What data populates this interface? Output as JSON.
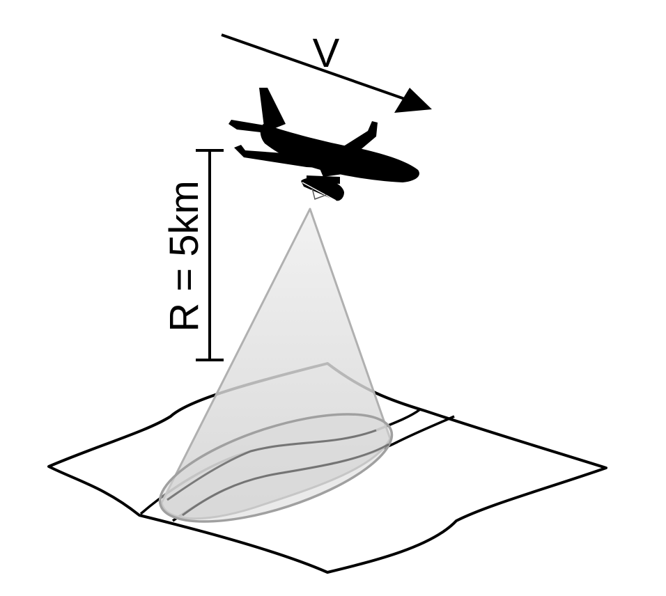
{
  "labels": {
    "velocity": "V",
    "range": "R = 5km"
  },
  "colors": {
    "ink": "#000000",
    "beam_fill": "#e4e4e4",
    "beam_edge": "#b0b0b0",
    "footprint_edge": "#9a9a9a",
    "inner_road": "#5a5a5a"
  },
  "icons": {
    "aircraft": "airplane-silhouette-icon",
    "sensor": "radar-dome-icon",
    "direction": "arrow-right-icon"
  }
}
